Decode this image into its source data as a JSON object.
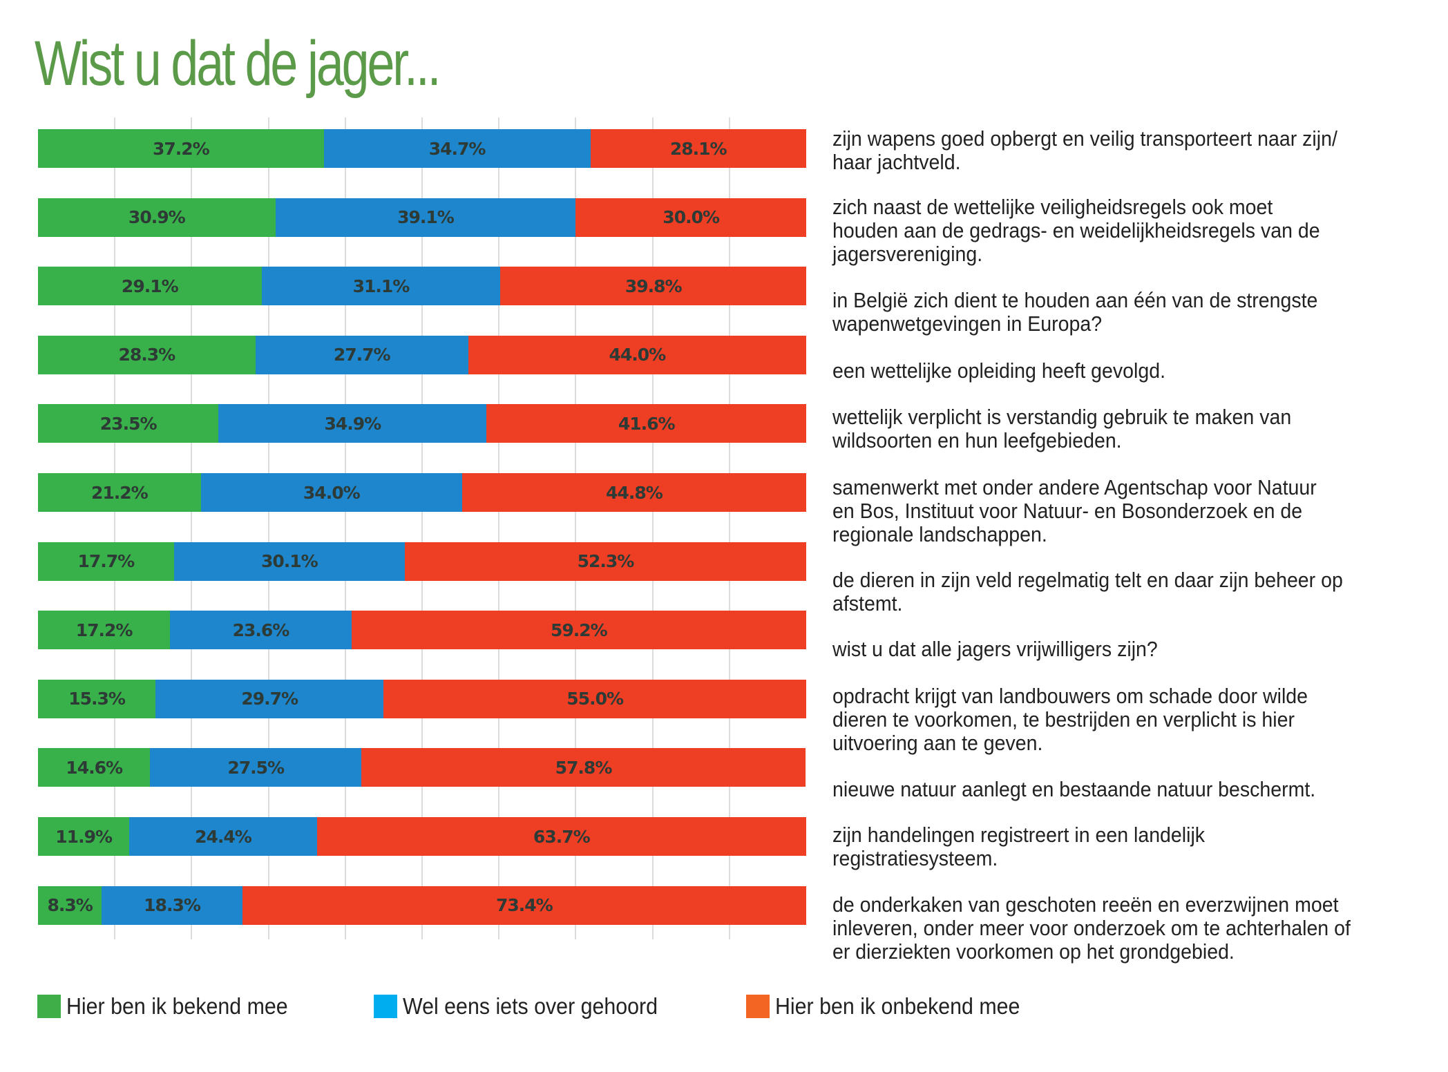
{
  "title": "Wist u dat de jager...",
  "colors": {
    "known": "#39b14a",
    "heard": "#1d86cc",
    "unknown": "#ee3e23",
    "legend_known": "#3fae49",
    "legend_heard": "#00aeef",
    "legend_unknown": "#f26522",
    "title": "#5a9a48"
  },
  "legend": [
    {
      "label": "Hier ben ik bekend mee",
      "key": "known"
    },
    {
      "label": "Wel eens iets over gehoord",
      "key": "heard"
    },
    {
      "label": "Hier ben ik onbekend mee",
      "key": "unknown"
    }
  ],
  "chart_data": {
    "type": "bar",
    "orientation": "horizontal",
    "stacked": true,
    "normalized": true,
    "title": "Wist u dat de jager...",
    "xlabel": "",
    "ylabel": "",
    "xlim": [
      0,
      100
    ],
    "grid": true,
    "gridlines_x": [
      10,
      20,
      30,
      40,
      50,
      60,
      70,
      80,
      90
    ],
    "legend_position": "bottom-left",
    "categories": [
      [
        "zijn wapens goed opbergt en veilig transporteert naar zijn/",
        "haar jachtveld."
      ],
      [
        "zich naast de wettelijke veiligheidsregels ook moet",
        "houden aan de gedrags- en weidelijkheidsregels van de",
        "jagersvereniging."
      ],
      [
        "in België zich dient te houden aan één van de strengste",
        "wapenwetgevingen in Europa?"
      ],
      [
        "een wettelijke opleiding heeft gevolgd."
      ],
      [
        "wettelijk verplicht is verstandig gebruik te maken van",
        "wildsoorten en hun leefgebieden."
      ],
      [
        "samenwerkt met onder andere Agentschap voor Natuur",
        "en Bos, Instituut voor Natuur- en Bosonderzoek en de",
        "regionale landschappen."
      ],
      [
        "de dieren in zijn veld regelmatig telt en daar zijn beheer op",
        "afstemt."
      ],
      [
        "wist u dat alle jagers vrijwilligers zijn?"
      ],
      [
        "opdracht krijgt van landbouwers om schade door wilde",
        "dieren te voorkomen, te bestrijden en verplicht is hier",
        "uitvoering aan te geven."
      ],
      [
        "nieuwe natuur aanlegt en bestaande natuur beschermt."
      ],
      [
        "zijn handelingen registreert in een landelijk",
        "registratiesysteem."
      ],
      [
        "de onderkaken van geschoten reeën en everzwijnen moet",
        "inleveren, onder meer voor onderzoek om te achterhalen of",
        "er dierziekten voorkomen op het grondgebied."
      ]
    ],
    "series": [
      {
        "name": "Hier ben ik bekend mee",
        "color": "#39b14a",
        "values": [
          37.2,
          30.9,
          29.1,
          28.3,
          23.5,
          21.2,
          17.7,
          17.2,
          15.3,
          14.6,
          11.9,
          8.3
        ],
        "labels": [
          "37.2%",
          "30.9%",
          "29.1%",
          "28.3%",
          "23.5%",
          "21.2%",
          "17.7%",
          "17.2%",
          "15.3%",
          "14.6%",
          "11.9%",
          "8.3%"
        ]
      },
      {
        "name": "Wel eens iets over gehoord",
        "color": "#1d86cc",
        "values": [
          34.7,
          39.1,
          31.1,
          27.7,
          34.9,
          34.0,
          30.1,
          23.6,
          29.7,
          27.5,
          24.4,
          18.3
        ],
        "labels": [
          "34.7%",
          "39.1%",
          "31.1%",
          "27.7%",
          "34.9%",
          "34.0%",
          "30.1%",
          "23.6%",
          "29.7%",
          "27.5%",
          "24.4%",
          "18.3%"
        ]
      },
      {
        "name": "Hier ben ik onbekend mee",
        "color": "#ee3e23",
        "values": [
          28.1,
          30.0,
          39.8,
          44.0,
          41.6,
          44.8,
          52.3,
          59.2,
          55.0,
          57.8,
          63.7,
          73.4
        ],
        "labels": [
          "28.1%",
          "30.0%",
          "39.8%",
          "44.0%",
          "41.6%",
          "44.8%",
          "52.3%",
          "59.2%",
          "55.0%",
          "57.8%",
          "63.7%",
          "73.4%"
        ]
      }
    ]
  }
}
